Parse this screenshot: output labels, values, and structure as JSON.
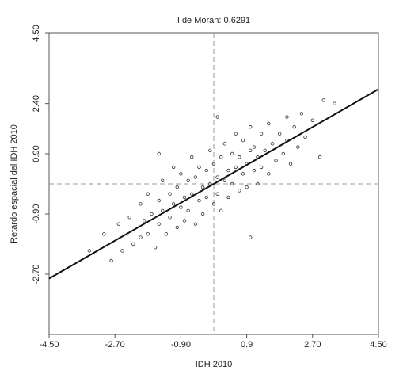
{
  "chart_data": {
    "type": "scatter",
    "title": "I de Moran: 0,6291",
    "x_label": "IDH 2010",
    "y_label": "Retardo espacial del IDH 2010",
    "xlim": [
      -4.5,
      4.5
    ],
    "ylim": [
      -4.5,
      4.5
    ],
    "xticks": [
      {
        "value": -4.5,
        "label": "-4.50"
      },
      {
        "value": -2.7,
        "label": "-2.70"
      },
      {
        "value": -0.9,
        "label": "-0.90"
      },
      0.9,
      {
        "value": 2.7,
        "label": "2.70"
      },
      {
        "value": 4.5,
        "label": "4.50"
      }
    ],
    "yticks": [
      {
        "value": -2.7,
        "label": "-2.70"
      },
      {
        "value": -0.9,
        "label": "-0.90"
      },
      {
        "value": 0.9,
        "label": "0.90"
      },
      {
        "value": 2.4,
        "label": "2.40"
      },
      {
        "value": 4.5,
        "label": "4.50"
      }
    ],
    "reference_lines": {
      "x": 0,
      "y": 0
    },
    "trend_line": {
      "x": [
        -4.5,
        4.5
      ],
      "y": [
        -2.83,
        2.83
      ]
    },
    "color": "#333333",
    "x": [
      -3.4,
      -3.0,
      -2.8,
      -2.6,
      -2.5,
      -2.3,
      -2.2,
      -2.0,
      -2.0,
      -1.9,
      -1.8,
      -1.8,
      -1.7,
      -1.6,
      -1.5,
      -1.5,
      -1.4,
      -1.4,
      -1.3,
      -1.2,
      -1.2,
      -1.1,
      -1.1,
      -1.0,
      -1.0,
      -0.9,
      -0.9,
      -0.8,
      -0.8,
      -0.7,
      -0.7,
      -0.6,
      -0.6,
      -0.5,
      -0.5,
      -0.4,
      -0.4,
      -0.3,
      -0.3,
      -0.2,
      -0.2,
      -0.1,
      -0.1,
      0,
      0,
      0.1,
      0.1,
      0.2,
      0.2,
      0.3,
      0.3,
      0.4,
      0.4,
      0.5,
      0.5,
      0.6,
      0.6,
      0.7,
      0.7,
      0.8,
      0.8,
      0.9,
      0.9,
      1.0,
      1.0,
      1.1,
      1.1,
      1.2,
      1.2,
      1.3,
      1.3,
      1.4,
      1.5,
      1.5,
      1.6,
      1.7,
      1.8,
      1.9,
      2.0,
      2.0,
      2.1,
      2.2,
      2.3,
      2.4,
      2.5,
      2.7,
      2.9,
      3.0,
      3.3,
      -1.5,
      0.1,
      1.0
    ],
    "values": [
      -2.0,
      -1.5,
      -2.3,
      -1.2,
      -2.0,
      -1.0,
      -1.8,
      -0.6,
      -1.6,
      -1.1,
      -0.3,
      -1.5,
      -0.9,
      -1.9,
      -0.5,
      -1.2,
      0.1,
      -0.8,
      -1.5,
      -0.3,
      -1.0,
      0.5,
      -0.6,
      -1.3,
      -0.1,
      -0.7,
      0.3,
      -1.1,
      -0.4,
      0.1,
      -0.8,
      0.8,
      -0.3,
      -1.2,
      0.2,
      -0.5,
      0.5,
      -0.1,
      -0.9,
      0.4,
      -0.4,
      1.0,
      0.0,
      -0.6,
      0.6,
      0.2,
      -0.3,
      0.8,
      -0.8,
      0.1,
      1.2,
      0.4,
      -0.4,
      0.9,
      0.0,
      1.5,
      0.5,
      -0.2,
      0.8,
      0.3,
      1.3,
      0.6,
      -0.1,
      1.0,
      1.7,
      0.4,
      1.1,
      0.0,
      0.8,
      1.5,
      0.5,
      1.0,
      0.3,
      1.8,
      1.2,
      0.7,
      1.5,
      0.9,
      2.0,
      1.3,
      0.6,
      1.7,
      1.1,
      2.1,
      1.4,
      1.9,
      0.8,
      2.5,
      2.4,
      0.9,
      2.0,
      -1.6
    ]
  }
}
